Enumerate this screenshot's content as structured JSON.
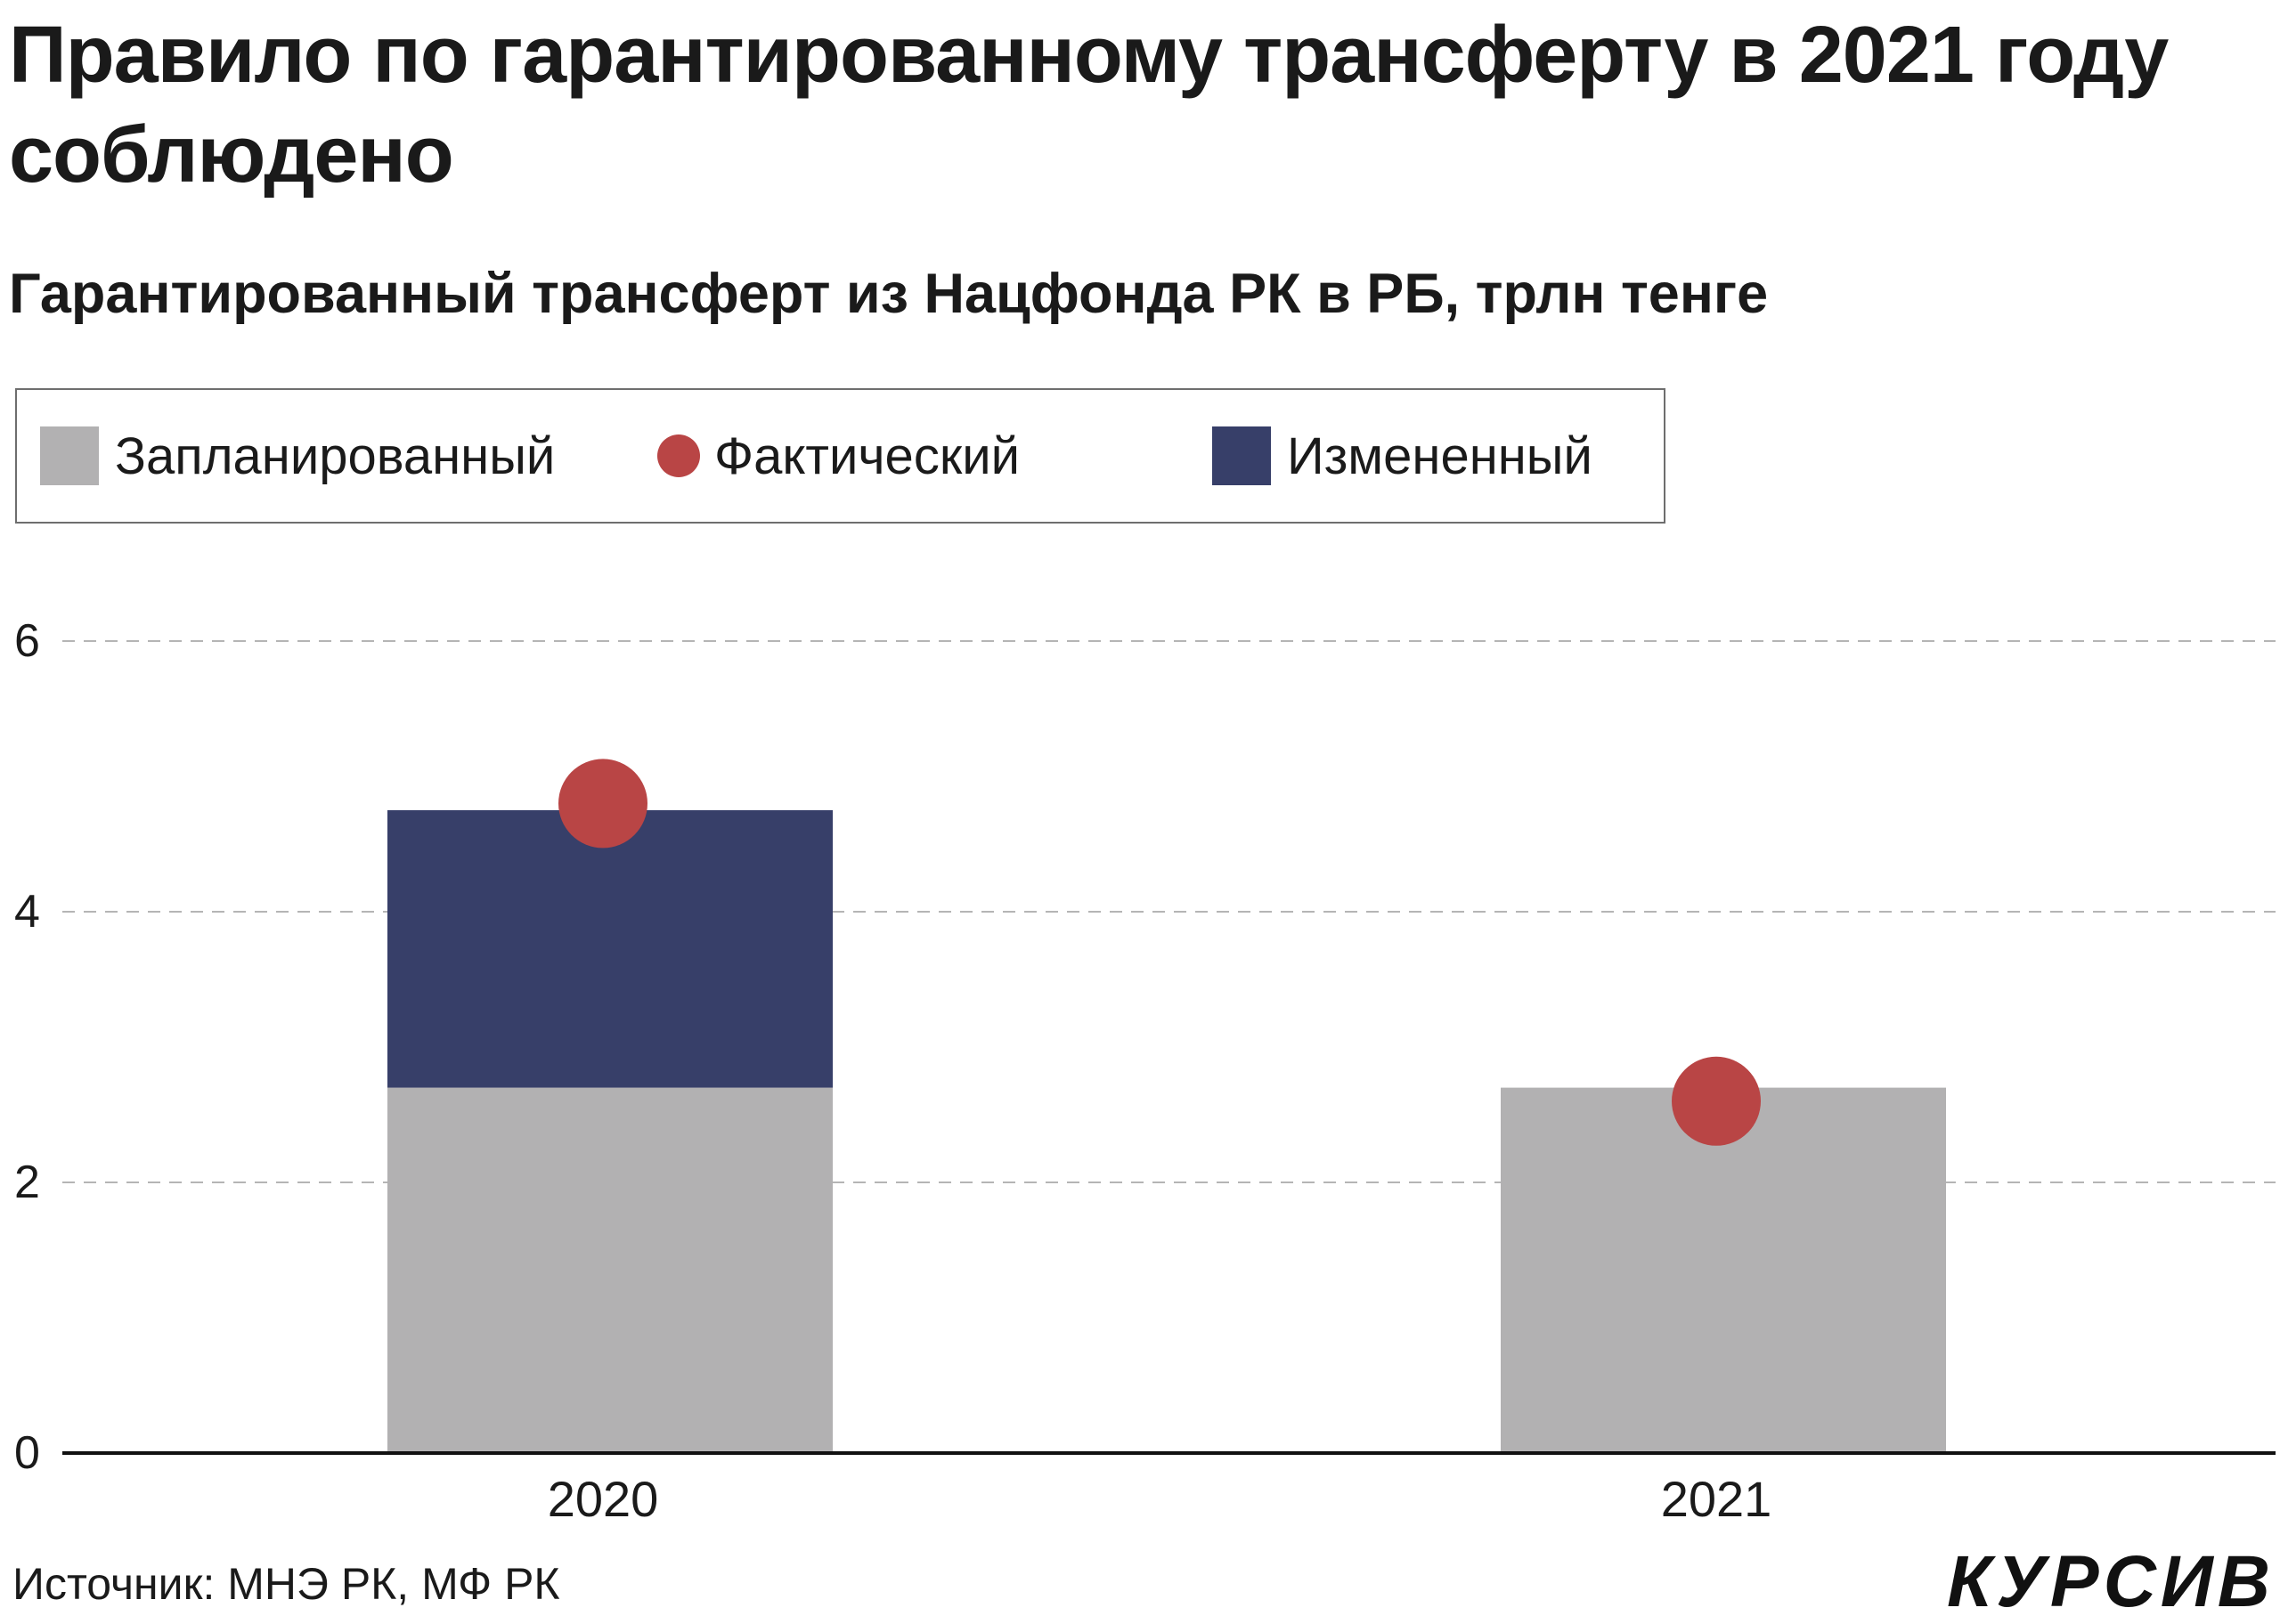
{
  "header": {
    "title": "Правило по гарантированному трансферту в 2021 году соблюдено",
    "subtitle": "Гарантированный трансферт из Нацфонда РК в РБ, трлн тенге"
  },
  "legend": {
    "items": [
      {
        "label": "Запланированный",
        "marker": "square",
        "color": "#b2b1b2"
      },
      {
        "label": "Фактический",
        "marker": "circle",
        "color": "#b94545"
      },
      {
        "label": "Измененный",
        "marker": "square",
        "color": "#373f69"
      }
    ]
  },
  "chart_data": {
    "type": "bar",
    "stacked": true,
    "categories": [
      "2020",
      "2021"
    ],
    "series": [
      {
        "name": "Запланированный",
        "kind": "bar",
        "color": "#b2b1b2",
        "values": [
          2.7,
          2.7
        ]
      },
      {
        "name": "Измененный",
        "kind": "bar",
        "color": "#373f69",
        "values": [
          2.05,
          0
        ]
      },
      {
        "name": "Фактический",
        "kind": "point",
        "color": "#b94545",
        "values": [
          4.8,
          2.6
        ]
      }
    ],
    "yticks": [
      0,
      2,
      4,
      6
    ],
    "ylim": [
      0,
      6
    ],
    "grid": true,
    "legend_position": "top"
  },
  "footer": {
    "source": "Источник: МНЭ РК, МФ РК",
    "brand": "КУРСИВ"
  }
}
